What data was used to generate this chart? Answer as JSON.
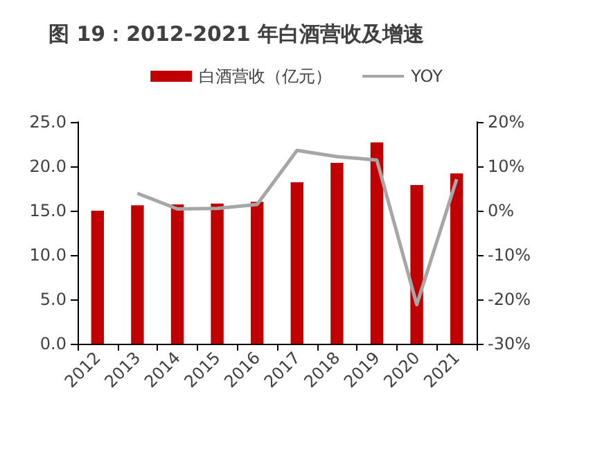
{
  "chart_data": {
    "type": "bar",
    "title": "图 19：2012-2021 年白酒营收及增速",
    "categories": [
      "2012",
      "2013",
      "2014",
      "2015",
      "2016",
      "2017",
      "2018",
      "2019",
      "2020",
      "2021"
    ],
    "series": [
      {
        "name": "白酒营收（亿元）",
        "color": "#c00000",
        "values": [
          15.0,
          15.6,
          15.7,
          15.8,
          16.0,
          18.2,
          20.4,
          22.7,
          17.9,
          19.2
        ]
      },
      {
        "name": "YOY",
        "type": "line",
        "axis": "y2",
        "color": "#a6a6a6",
        "values": [
          null,
          3.9,
          0.4,
          0.5,
          1.4,
          13.6,
          12.2,
          11.4,
          -21.2,
          7.1
        ]
      }
    ],
    "ylim": [
      0,
      25
    ],
    "yticks": [
      {
        "value": 0,
        "label": "0.0"
      },
      {
        "value": 5,
        "label": "5.0"
      },
      {
        "value": 10,
        "label": "10.0"
      },
      {
        "value": 15,
        "label": "15.0"
      },
      {
        "value": 20,
        "label": "20.0"
      },
      {
        "value": 25,
        "label": "25.0"
      }
    ],
    "y2lim": [
      -30,
      20
    ],
    "y2ticks": [
      {
        "value": -30,
        "label": "-30%"
      },
      {
        "value": -20,
        "label": "-20%"
      },
      {
        "value": -10,
        "label": "-10%"
      },
      {
        "value": 0,
        "label": "0%"
      },
      {
        "value": 10,
        "label": "10%"
      },
      {
        "value": 20,
        "label": "20%"
      }
    ],
    "legend": "top",
    "grid": false,
    "marker": "none",
    "line_style": "solid"
  }
}
